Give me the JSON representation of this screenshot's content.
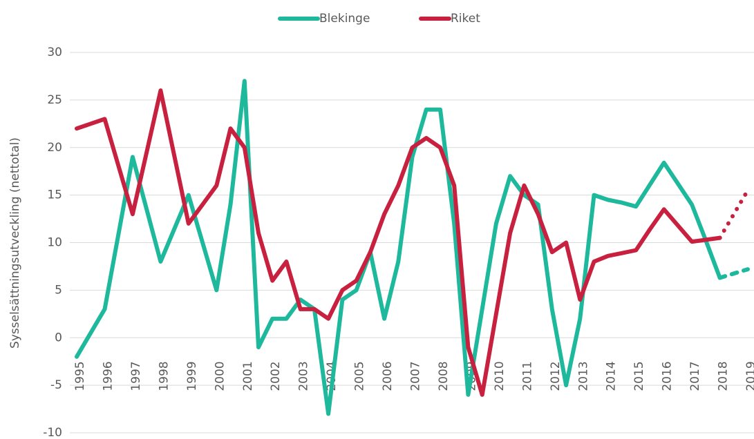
{
  "chart_data": {
    "type": "line",
    "y_label": "Sysselsättningsutveckling (nettotal)",
    "categories": [
      "1995",
      null,
      "1996",
      null,
      "1997",
      null,
      "1998",
      null,
      "1999",
      null,
      "2000",
      null,
      "2001",
      null,
      "2002",
      null,
      "2003",
      null,
      "2004",
      null,
      "2005",
      null,
      "2006",
      null,
      "2007",
      null,
      "2008",
      null,
      "2009",
      null,
      "2010",
      null,
      "2011",
      null,
      "2012",
      null,
      "2013",
      null,
      "2014",
      null,
      "2015",
      null,
      "2016",
      null,
      "2017",
      null,
      "2018",
      null,
      "2019"
    ],
    "forecast_from": 46,
    "series": [
      {
        "name": "Blekinge",
        "color": "#1eb99d",
        "forecast_style": "dashed",
        "values": [
          -2,
          0.5,
          3,
          11,
          19,
          13.5,
          8,
          11.5,
          15,
          10,
          5,
          14,
          27,
          -1,
          2,
          2,
          4,
          3,
          -8,
          4,
          5,
          9,
          2,
          8,
          19,
          24,
          24,
          12,
          -6,
          3,
          12,
          17,
          15,
          14,
          3,
          -5,
          2,
          15,
          14.5,
          14.2,
          13.8,
          16.1,
          18.4,
          16.2,
          14,
          10.2,
          6.3,
          6.75,
          7.2
        ]
      },
      {
        "name": "Riket",
        "color": "#c8203f",
        "forecast_style": "dotted",
        "values": [
          22,
          22.5,
          23,
          18,
          13,
          19.5,
          26,
          19,
          12,
          14,
          16,
          22,
          20,
          11,
          6,
          8,
          3,
          3,
          2,
          5,
          6,
          9,
          13,
          16,
          20,
          21,
          20,
          16,
          -1,
          -6,
          2.5,
          11,
          16,
          13,
          9,
          10,
          4,
          8,
          8.6,
          8.9,
          9.2,
          11.4,
          13.5,
          11.8,
          10.1,
          10.3,
          10.5,
          13,
          15.5
        ]
      }
    ],
    "ylim": [
      -10,
      30
    ],
    "yticks": [
      -10,
      -5,
      0,
      5,
      10,
      15,
      20,
      25,
      30
    ],
    "grid": true,
    "legend": "top"
  }
}
